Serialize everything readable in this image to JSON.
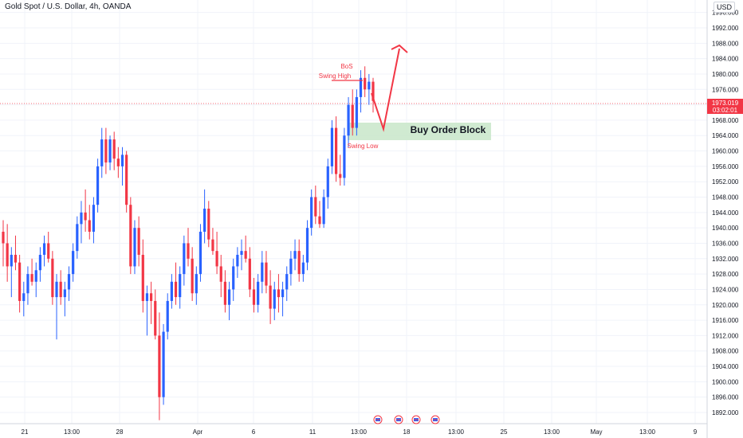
{
  "header": {
    "title": "Gold Spot / U.S. Dollar, 4h, OANDA",
    "currency": "USD"
  },
  "price_tag": {
    "price": "1973.019",
    "countdown": "03:02:01"
  },
  "annotations": {
    "bos": "BoS",
    "swing_high": "Swing High",
    "swing_low": "Swing Low",
    "order_block": "Buy Order Block"
  },
  "colors": {
    "up": "#2962ff",
    "down": "#f23645",
    "annotation": "#f23645",
    "order_block_fill": "#c8e6c9",
    "grid": "#f0f3fa",
    "axis_text": "#131722"
  },
  "icons": [
    "event-flag-icon",
    "event-flag-icon",
    "event-flag-icon",
    "event-flag-icon"
  ],
  "chart_data": {
    "type": "candlestick",
    "title": "Gold Spot / U.S. Dollar, 4h, OANDA",
    "ylim": [
      1888,
      2000
    ],
    "y_ticks": [
      1892,
      1896,
      1900,
      1904,
      1908,
      1912,
      1916,
      1920,
      1924,
      1928,
      1932,
      1936,
      1940,
      1944,
      1948,
      1952,
      1956,
      1960,
      1964,
      1968,
      1972,
      1976,
      1980,
      1984,
      1988,
      1992,
      1996
    ],
    "x_ticks": [
      "21",
      "13:00",
      "28",
      "Apr",
      "6",
      "11",
      "13:00",
      "18",
      "13:00",
      "25",
      "13:00",
      "May",
      "13:00",
      "9"
    ],
    "last_price": 1973.019,
    "candles": [
      [
        1939,
        1942,
        1930,
        1936
      ],
      [
        1936,
        1941,
        1926,
        1930
      ],
      [
        1930,
        1935,
        1922,
        1933
      ],
      [
        1933,
        1938,
        1929,
        1931
      ],
      [
        1931,
        1933,
        1918,
        1921
      ],
      [
        1921,
        1926,
        1917,
        1923
      ],
      [
        1923,
        1930,
        1920,
        1928
      ],
      [
        1928,
        1932,
        1925,
        1926
      ],
      [
        1926,
        1931,
        1922,
        1929
      ],
      [
        1929,
        1935,
        1926,
        1933
      ],
      [
        1933,
        1938,
        1930,
        1936
      ],
      [
        1936,
        1939,
        1931,
        1932
      ],
      [
        1932,
        1934,
        1920,
        1922
      ],
      [
        1922,
        1928,
        1911,
        1926
      ],
      [
        1926,
        1929,
        1920,
        1922
      ],
      [
        1922,
        1926,
        1917,
        1924
      ],
      [
        1924,
        1930,
        1921,
        1928
      ],
      [
        1928,
        1936,
        1926,
        1934
      ],
      [
        1934,
        1943,
        1932,
        1941
      ],
      [
        1941,
        1947,
        1936,
        1944
      ],
      [
        1944,
        1950,
        1939,
        1942
      ],
      [
        1942,
        1946,
        1937,
        1939
      ],
      [
        1939,
        1948,
        1936,
        1946
      ],
      [
        1946,
        1958,
        1944,
        1956
      ],
      [
        1956,
        1966,
        1953,
        1963
      ],
      [
        1963,
        1966,
        1954,
        1957
      ],
      [
        1957,
        1964,
        1955,
        1963
      ],
      [
        1963,
        1965,
        1955,
        1958
      ],
      [
        1958,
        1961,
        1953,
        1956
      ],
      [
        1956,
        1961,
        1951,
        1959
      ],
      [
        1959,
        1960,
        1944,
        1946
      ],
      [
        1946,
        1948,
        1928,
        1930
      ],
      [
        1930,
        1942,
        1928,
        1940
      ],
      [
        1940,
        1943,
        1930,
        1933
      ],
      [
        1933,
        1937,
        1918,
        1921
      ],
      [
        1921,
        1925,
        1912,
        1923
      ],
      [
        1923,
        1926,
        1915,
        1921
      ],
      [
        1921,
        1924,
        1911,
        1912
      ],
      [
        1912,
        1918,
        1890,
        1896
      ],
      [
        1896,
        1915,
        1894,
        1913
      ],
      [
        1913,
        1923,
        1911,
        1921
      ],
      [
        1921,
        1928,
        1919,
        1926
      ],
      [
        1926,
        1931,
        1920,
        1922
      ],
      [
        1922,
        1930,
        1919,
        1928
      ],
      [
        1928,
        1938,
        1925,
        1936
      ],
      [
        1936,
        1940,
        1930,
        1932
      ],
      [
        1932,
        1935,
        1921,
        1923
      ],
      [
        1923,
        1930,
        1920,
        1928
      ],
      [
        1928,
        1941,
        1926,
        1939
      ],
      [
        1939,
        1950,
        1936,
        1945
      ],
      [
        1945,
        1947,
        1935,
        1937
      ],
      [
        1937,
        1940,
        1933,
        1934
      ],
      [
        1934,
        1939,
        1928,
        1930
      ],
      [
        1930,
        1933,
        1922,
        1926
      ],
      [
        1926,
        1929,
        1918,
        1920
      ],
      [
        1920,
        1926,
        1916,
        1924
      ],
      [
        1924,
        1932,
        1921,
        1930
      ],
      [
        1930,
        1935,
        1927,
        1933
      ],
      [
        1933,
        1937,
        1929,
        1934
      ],
      [
        1934,
        1938,
        1931,
        1932
      ],
      [
        1932,
        1935,
        1922,
        1924
      ],
      [
        1924,
        1927,
        1918,
        1920
      ],
      [
        1920,
        1928,
        1918,
        1926
      ],
      [
        1926,
        1934,
        1923,
        1931
      ],
      [
        1931,
        1934,
        1923,
        1925
      ],
      [
        1925,
        1929,
        1915,
        1919
      ],
      [
        1919,
        1926,
        1916,
        1924
      ],
      [
        1924,
        1928,
        1918,
        1922
      ],
      [
        1922,
        1926,
        1917,
        1924
      ],
      [
        1924,
        1930,
        1921,
        1928
      ],
      [
        1928,
        1934,
        1925,
        1932
      ],
      [
        1932,
        1937,
        1929,
        1934
      ],
      [
        1934,
        1937,
        1926,
        1928
      ],
      [
        1928,
        1933,
        1926,
        1931
      ],
      [
        1931,
        1942,
        1929,
        1940
      ],
      [
        1940,
        1950,
        1938,
        1948
      ],
      [
        1948,
        1951,
        1941,
        1943
      ],
      [
        1943,
        1947,
        1940,
        1941
      ],
      [
        1941,
        1950,
        1940,
        1948
      ],
      [
        1948,
        1958,
        1945,
        1956
      ],
      [
        1956,
        1968,
        1954,
        1966
      ],
      [
        1966,
        1969,
        1952,
        1954
      ],
      [
        1954,
        1959,
        1951,
        1953
      ],
      [
        1953,
        1966,
        1951,
        1964
      ],
      [
        1964,
        1974,
        1961,
        1972
      ],
      [
        1972,
        1976,
        1964,
        1966
      ],
      [
        1966,
        1976,
        1964,
        1974
      ],
      [
        1974,
        1981,
        1970,
        1979
      ],
      [
        1979,
        1982,
        1974,
        1976
      ],
      [
        1976,
        1980,
        1972,
        1978
      ],
      [
        1978,
        1979,
        1970,
        1973
      ]
    ]
  }
}
